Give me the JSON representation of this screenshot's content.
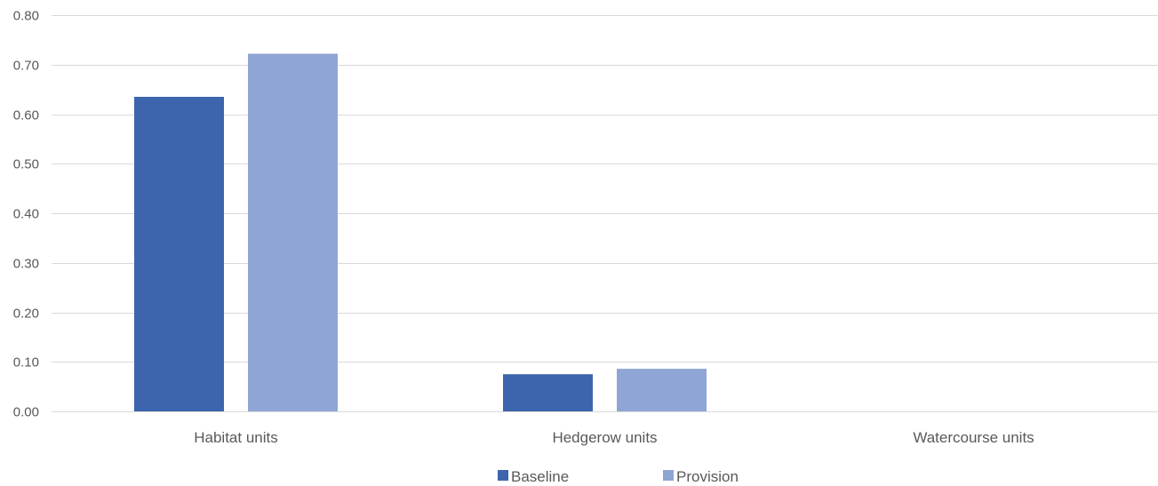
{
  "chart_data": {
    "type": "bar",
    "title": "",
    "xlabel": "",
    "ylabel": "",
    "categories": [
      "Habitat units",
      "Hedgerow units",
      "Watercourse units"
    ],
    "series": [
      {
        "name": "Baseline",
        "color": "#3d65ad",
        "values": [
          0.635,
          0.075,
          0.0
        ]
      },
      {
        "name": "Provision",
        "color": "#8fa5d5",
        "values": [
          0.722,
          0.086,
          0.0
        ]
      }
    ],
    "ylim": [
      0,
      0.8
    ],
    "yticks": [
      0.0,
      0.1,
      0.2,
      0.3,
      0.4,
      0.5,
      0.6,
      0.7,
      0.8
    ],
    "ytick_labels": [
      "0.00",
      "0.10",
      "0.20",
      "0.30",
      "0.40",
      "0.50",
      "0.60",
      "0.70",
      "0.80"
    ],
    "grid": true,
    "gridline_color": "#d9d9d9",
    "legend_position": "bottom"
  }
}
